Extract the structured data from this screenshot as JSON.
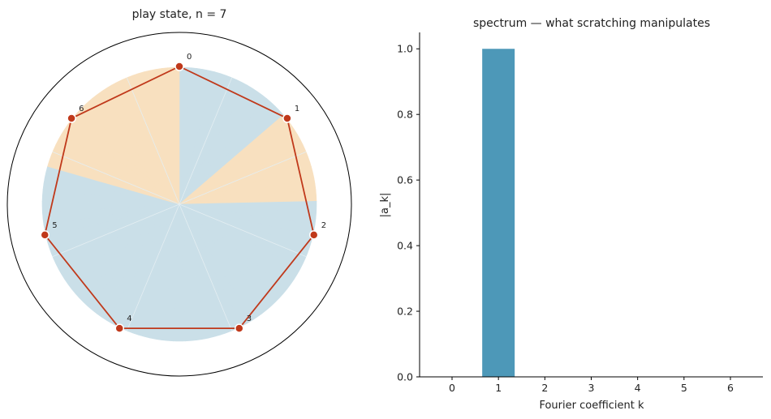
{
  "chart_data": [
    {
      "type": "polar",
      "title": "play state, n = 7",
      "n": 7,
      "vertex_labels": [
        "0",
        "1",
        "2",
        "3",
        "4",
        "5",
        "6"
      ],
      "sector_states": [
        0,
        0,
        0,
        0,
        0,
        0,
        0,
        0,
        0,
        0,
        1,
        1,
        1,
        1,
        1,
        1,
        1,
        1,
        0,
        0,
        0,
        0,
        0,
        0,
        0,
        0,
        0,
        0,
        0,
        0,
        0,
        0,
        0,
        0,
        0,
        0,
        0,
        0,
        0,
        0,
        0,
        0,
        0,
        0,
        0,
        0,
        0,
        0,
        0,
        0,
        0,
        0,
        0,
        0,
        0,
        0,
        0,
        0,
        1,
        1,
        1,
        1,
        1,
        1,
        1,
        1,
        1,
        1,
        1,
        1,
        1,
        1,
        1
      ],
      "colors": {
        "ring_off": "#cadfe8",
        "ring_on": "#f8e0bf",
        "polygon_line": "#c0391b",
        "vertex_marker": "#c0391b",
        "outer_circle": "#000000"
      }
    },
    {
      "type": "bar",
      "title": "spectrum — what scratching manipulates",
      "xlabel": "Fourier coefficient k",
      "ylabel": "|a_k|",
      "categories": [
        "0",
        "1",
        "2",
        "3",
        "4",
        "5",
        "6"
      ],
      "values": [
        0.0,
        1.0,
        0.0,
        0.0,
        0.0,
        0.0,
        0.0
      ],
      "ylim": [
        0,
        1.05
      ],
      "yticks": [
        "0.0",
        "0.2",
        "0.4",
        "0.6",
        "0.8",
        "1.0"
      ],
      "bar_color": "#4d98b8"
    }
  ]
}
